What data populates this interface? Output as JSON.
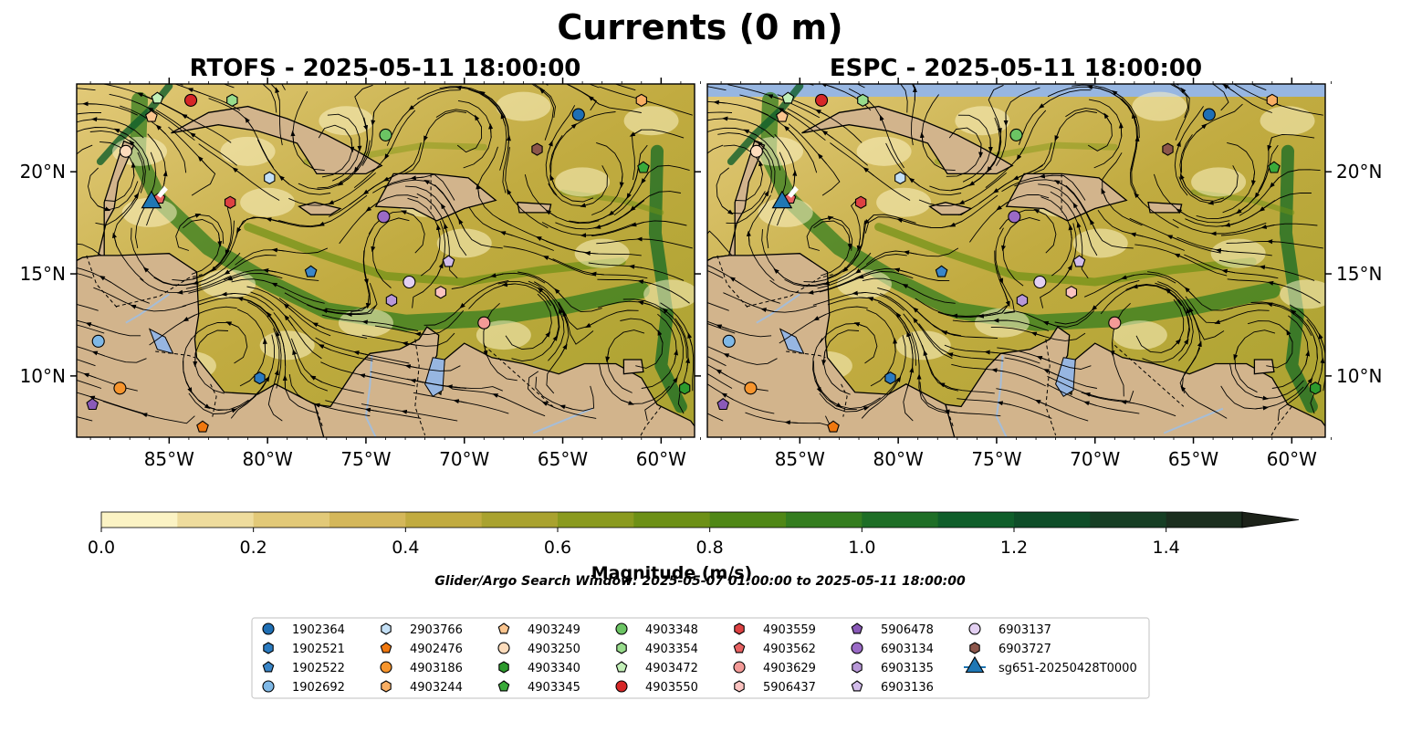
{
  "figure": {
    "title": "Currents (0 m)",
    "search_window": "Glider/Argo Search Window: 2025-05-07 01:00:00 to 2025-05-11 18:00:00"
  },
  "panels": [
    {
      "title": "RTOFS - 2025-05-11 18:00:00"
    },
    {
      "title": "ESPC - 2025-05-11 18:00:00"
    }
  ],
  "axes": {
    "lon_labels": [
      "85°W",
      "80°W",
      "75°W",
      "70°W",
      "65°W",
      "60°W"
    ],
    "lon_values": [
      -85,
      -80,
      -75,
      -70,
      -65,
      -60
    ],
    "lat_labels": [
      "10°N",
      "15°N",
      "20°N"
    ],
    "lat_values": [
      10,
      15,
      20
    ],
    "lon_range": [
      -89.7,
      -58.3
    ],
    "lat_range": [
      7.0,
      24.3
    ]
  },
  "colorbar": {
    "label": "Magnitude (m/s)",
    "tick_labels": [
      "0.0",
      "0.2",
      "0.4",
      "0.6",
      "0.8",
      "1.0",
      "1.2",
      "1.4"
    ],
    "range": [
      0,
      1.5
    ],
    "extend": "max",
    "colors": [
      "#fbf3c4",
      "#eedc9d",
      "#e2c978",
      "#d4b75a",
      "#c1ab40",
      "#a9a22f",
      "#8a9a1f",
      "#6d9016",
      "#4f8716",
      "#347d1f",
      "#1e6e26",
      "#0f5e2a",
      "#0e4d28",
      "#163e24",
      "#1b2e1e",
      "#1c2219"
    ]
  },
  "colors": {
    "land": "#d2b48c",
    "water_body": "#97b6e1",
    "river": "#a5bdd8",
    "glider": "#1f77b4"
  },
  "legend": [
    {
      "id": "1902364",
      "shape": "circle",
      "color": "#1f6fb4"
    },
    {
      "id": "1902521",
      "shape": "hexagon",
      "color": "#2b7bc0"
    },
    {
      "id": "1902522",
      "shape": "pentagon",
      "color": "#3a86c8"
    },
    {
      "id": "1902692",
      "shape": "circle",
      "color": "#7fb8e6"
    },
    {
      "id": "2903766",
      "shape": "hexagon",
      "color": "#c4e0f6"
    },
    {
      "id": "4902476",
      "shape": "pentagon",
      "color": "#f0780f"
    },
    {
      "id": "4903186",
      "shape": "circle",
      "color": "#f7952d"
    },
    {
      "id": "4903244",
      "shape": "hexagon",
      "color": "#f8ae63"
    },
    {
      "id": "4903249",
      "shape": "pentagon",
      "color": "#fbc58f"
    },
    {
      "id": "4903250",
      "shape": "circle",
      "color": "#fddcbc"
    },
    {
      "id": "4903340",
      "shape": "hexagon",
      "color": "#2d9a2d"
    },
    {
      "id": "4903345",
      "shape": "pentagon",
      "color": "#3aaa3a"
    },
    {
      "id": "4903348",
      "shape": "circle",
      "color": "#6bc463"
    },
    {
      "id": "4903354",
      "shape": "hexagon",
      "color": "#98dc8c"
    },
    {
      "id": "4903472",
      "shape": "pentagon",
      "color": "#c3f0b8"
    },
    {
      "id": "4903550",
      "shape": "circle",
      "color": "#d62728"
    },
    {
      "id": "4903559",
      "shape": "hexagon",
      "color": "#dd4142"
    },
    {
      "id": "4903562",
      "shape": "pentagon",
      "color": "#e86262"
    },
    {
      "id": "4903629",
      "shape": "circle",
      "color": "#f39a97"
    },
    {
      "id": "5906437",
      "shape": "hexagon",
      "color": "#fbc3c0"
    },
    {
      "id": "5906478",
      "shape": "pentagon",
      "color": "#8a5ab8"
    },
    {
      "id": "6903134",
      "shape": "circle",
      "color": "#9a6ac6"
    },
    {
      "id": "6903135",
      "shape": "hexagon",
      "color": "#b898d8"
    },
    {
      "id": "6903136",
      "shape": "pentagon",
      "color": "#d2bcea"
    },
    {
      "id": "6903137",
      "shape": "circle",
      "color": "#e3d0f2"
    },
    {
      "id": "6903727",
      "shape": "hexagon",
      "color": "#8c564b"
    },
    {
      "id": "sg651-20250428T0000",
      "shape": "triangle",
      "color": "#1f77b4"
    }
  ],
  "floats": [
    {
      "id": "1902364",
      "lon": -64.2,
      "lat": 22.8
    },
    {
      "id": "1902521",
      "lon": -80.4,
      "lat": 9.9
    },
    {
      "id": "1902522",
      "lon": -77.8,
      "lat": 15.1
    },
    {
      "id": "1902692",
      "lon": -88.6,
      "lat": 11.7
    },
    {
      "id": "2903766",
      "lon": -79.9,
      "lat": 19.7
    },
    {
      "id": "4902476",
      "lon": -83.3,
      "lat": 7.5
    },
    {
      "id": "4903186",
      "lon": -87.5,
      "lat": 9.4
    },
    {
      "id": "4903244",
      "lon": -61.0,
      "lat": 23.5
    },
    {
      "id": "4903249",
      "lon": -85.9,
      "lat": 22.7
    },
    {
      "id": "4903250",
      "lon": -87.2,
      "lat": 21.0
    },
    {
      "id": "4903340",
      "lon": -58.8,
      "lat": 9.4
    },
    {
      "id": "4903345",
      "lon": -60.9,
      "lat": 20.2
    },
    {
      "id": "4903348",
      "lon": -74.0,
      "lat": 21.8
    },
    {
      "id": "4903354",
      "lon": -81.8,
      "lat": 23.5
    },
    {
      "id": "4903472",
      "lon": -85.6,
      "lat": 23.6
    },
    {
      "id": "4903550",
      "lon": -83.9,
      "lat": 23.5
    },
    {
      "id": "4903559",
      "lon": -81.9,
      "lat": 18.5
    },
    {
      "id": "4903562",
      "lon": -85.5,
      "lat": 18.7
    },
    {
      "id": "4903629",
      "lon": -69.0,
      "lat": 12.6
    },
    {
      "id": "5906437",
      "lon": -71.2,
      "lat": 14.1
    },
    {
      "id": "5906478",
      "lon": -88.9,
      "lat": 8.6
    },
    {
      "id": "6903134",
      "lon": -74.1,
      "lat": 17.8
    },
    {
      "id": "6903135",
      "lon": -73.7,
      "lat": 13.7
    },
    {
      "id": "6903136",
      "lon": -70.8,
      "lat": 15.6
    },
    {
      "id": "6903137",
      "lon": -72.8,
      "lat": 14.6
    },
    {
      "id": "6903727",
      "lon": -66.3,
      "lat": 21.1
    }
  ],
  "glider": {
    "id": "sg651-20250428T0000",
    "lon": -85.9,
    "lat": 18.5
  }
}
